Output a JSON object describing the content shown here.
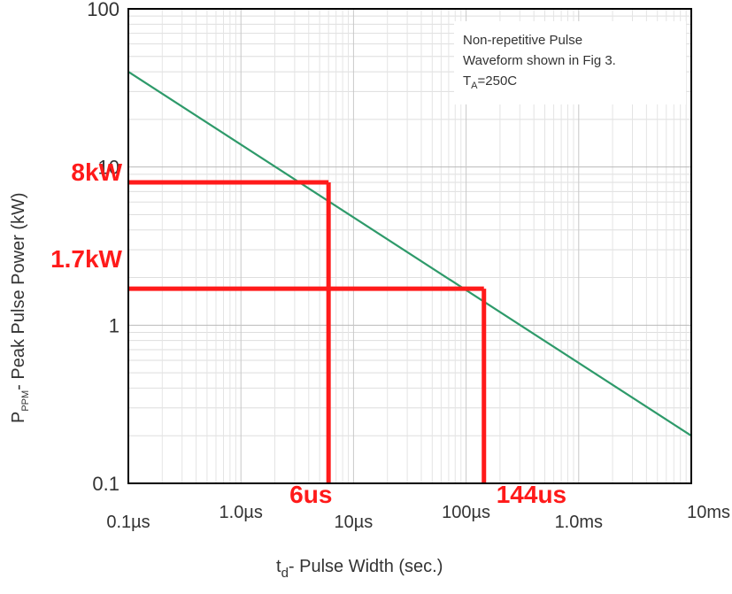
{
  "chart_data": {
    "type": "line",
    "title": "",
    "xlabel": {
      "main": "t",
      "sub": "d",
      "rest": "- Pulse Width (sec.)"
    },
    "ylabel": {
      "main": "P",
      "sub": "PPM",
      "rest": "- Peak Pulse Power (kW)"
    },
    "x_scale": "log",
    "y_scale": "log",
    "xlim_seconds": [
      1e-07,
      0.01
    ],
    "ylim_kw": [
      0.1,
      100
    ],
    "grid": true,
    "x_ticks": [
      {
        "label": "0.1µs",
        "value_seconds": 1e-07
      },
      {
        "label": "1.0µs",
        "value_seconds": 1e-06
      },
      {
        "label": "10µs",
        "value_seconds": 1e-05
      },
      {
        "label": "100µs",
        "value_seconds": 0.0001
      },
      {
        "label": "1.0ms",
        "value_seconds": 0.001
      },
      {
        "label": "10ms",
        "value_seconds": 0.01
      }
    ],
    "y_ticks": [
      {
        "label": "100",
        "value_kw": 100
      },
      {
        "label": "10",
        "value_kw": 10
      },
      {
        "label": "1",
        "value_kw": 1
      },
      {
        "label": "0.1",
        "value_kw": 0.1
      }
    ],
    "series": [
      {
        "color": "#2e9a6a",
        "x_seconds": [
          1e-07,
          0.01
        ],
        "y_kw": [
          40,
          0.2
        ]
      }
    ],
    "annotation_box": {
      "lines": [
        "Non-repetitive Pulse",
        "Waveform shown in Fig 3."
      ],
      "temp": {
        "main": "T",
        "sub": "A",
        "rest": "=250C"
      },
      "position": "top-right"
    },
    "markers": [
      {
        "x_seconds": 6e-06,
        "y_kw": 8,
        "x_label": "6us",
        "y_label": "8kW"
      },
      {
        "x_seconds": 0.000144,
        "y_kw": 1.7,
        "x_label": "144us",
        "y_label": "1.7kW"
      }
    ],
    "marker_color": "#ff1a1a"
  }
}
